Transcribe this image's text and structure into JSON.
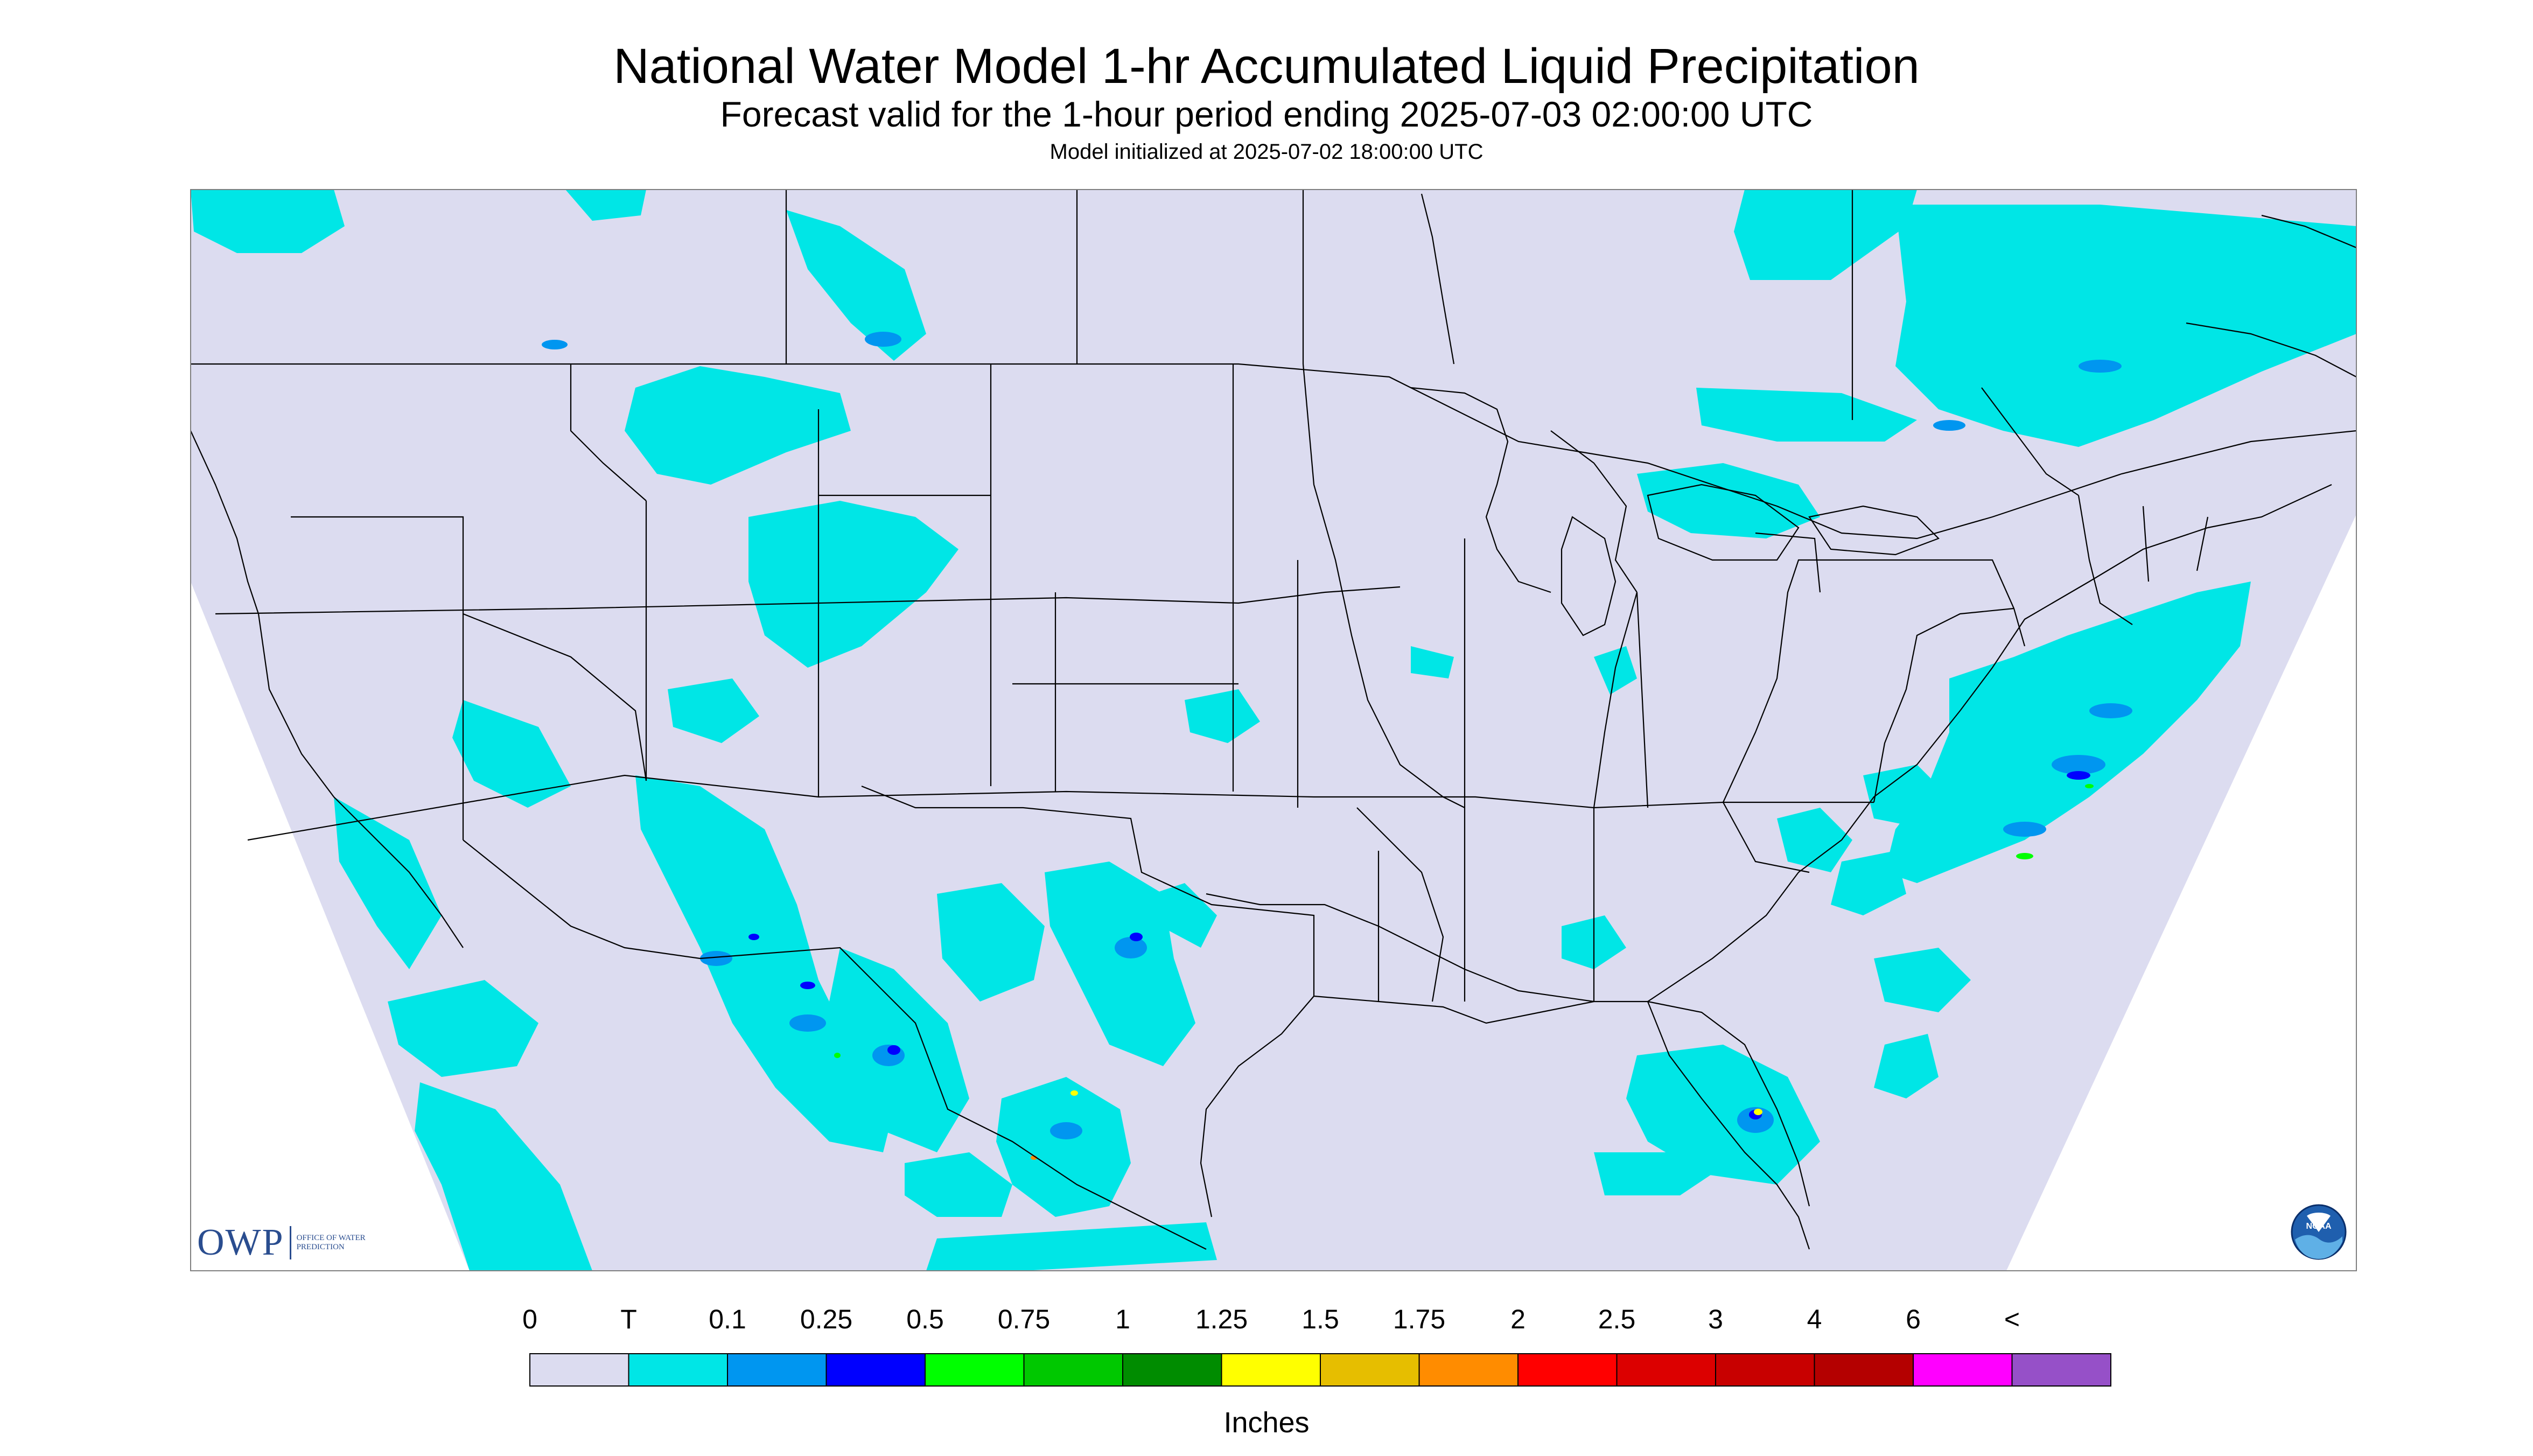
{
  "title": "National Water Model 1-hr Accumulated Liquid Precipitation",
  "subtitle": "Forecast valid for the 1-hour period ending 2025-07-03 02:00:00 UTC",
  "init": "Model initialized at 2025-07-02 18:00:00 UTC",
  "legend": {
    "units": "Inches",
    "labels": [
      "0",
      "T",
      "0.1",
      "0.25",
      "0.5",
      "0.75",
      "1",
      "1.25",
      "1.5",
      "1.75",
      "2",
      "2.5",
      "3",
      "4",
      "6",
      "<"
    ],
    "colors": [
      "#dcdcf0",
      "#00e6e6",
      "#0096f0",
      "#0000ff",
      "#00ff00",
      "#00c800",
      "#008c00",
      "#ffff00",
      "#e6be00",
      "#ff8c00",
      "#ff0000",
      "#dc0000",
      "#c80000",
      "#b40000",
      "#ff00ff",
      "#9650c8"
    ]
  },
  "map": {
    "background": "#dcdcf0",
    "outside_domain": "#ffffff",
    "boundary_color": "#000000"
  },
  "logos": {
    "owp_mark": "OWP",
    "owp_name": "OFFICE OF WATER PREDICTION",
    "noaa_text": "NOAA"
  }
}
